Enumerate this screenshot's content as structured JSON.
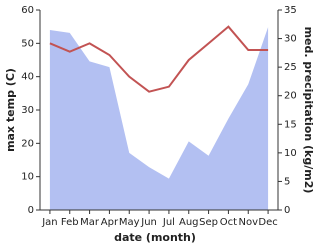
{
  "chart_data": {
    "type": "area-line",
    "x_label": "date (month)",
    "y_label": "max temp (C)",
    "y2_label": "med. precipitation (kg/m2)",
    "categories": [
      "Jan",
      "Feb",
      "Mar",
      "Apr",
      "May",
      "Jun",
      "Jul",
      "Aug",
      "Sep",
      "Oct",
      "Nov",
      "Dec"
    ],
    "ylim": [
      0,
      60
    ],
    "yticks": [
      0,
      10,
      20,
      30,
      40,
      50,
      60
    ],
    "y2lim": [
      0,
      35
    ],
    "y2ticks": [
      0,
      5,
      10,
      15,
      20,
      25,
      30,
      35
    ],
    "series": [
      {
        "name": "med. precipitation",
        "color": "#b3c0f2",
        "axis": "y2",
        "values": [
          31.5,
          31,
          26,
          25,
          10,
          7.5,
          5.5,
          12,
          9.5,
          16,
          22,
          32
        ]
      },
      {
        "name": "max temp",
        "color": "#c25353",
        "values": [
          50,
          47.5,
          50,
          46.5,
          40,
          35.5,
          37,
          45,
          50,
          55,
          48,
          48
        ]
      }
    ]
  }
}
